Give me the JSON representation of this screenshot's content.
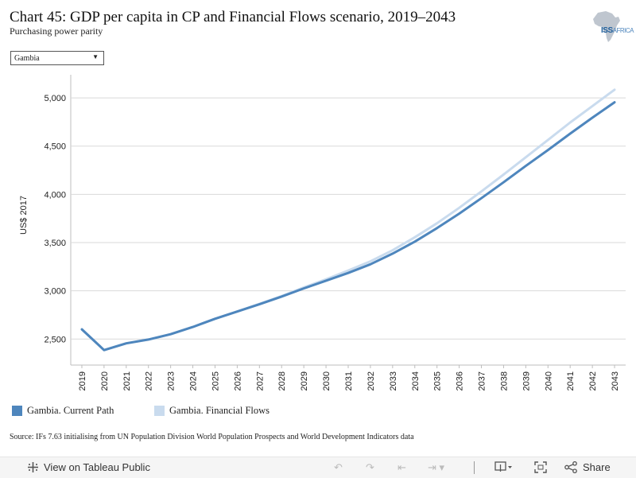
{
  "header": {
    "title": "Chart 45: GDP per capita in CP and Financial Flows scenario, 2019–2043",
    "subtitle": "Purchasing power parity",
    "logo_text": "ISS AFRICA"
  },
  "filter": {
    "selected": "Gambia"
  },
  "colors": {
    "current_path": "#4e86bd",
    "financial_flows": "#c9dbee",
    "grid": "#d9d9d9"
  },
  "chart_data": {
    "type": "line",
    "title": "Chart 45: GDP per capita in CP and Financial Flows scenario, 2019–2043",
    "subtitle": "Purchasing power parity",
    "xlabel": "",
    "ylabel": "US$ 2017",
    "ylim": [
      2230,
      5240
    ],
    "yticks": [
      2500,
      3000,
      3500,
      4000,
      4500,
      5000
    ],
    "ytick_labels": [
      "2,500",
      "3,000",
      "3,500",
      "4,000",
      "4,500",
      "5,000"
    ],
    "x": [
      2019,
      2020,
      2021,
      2022,
      2023,
      2024,
      2025,
      2026,
      2027,
      2028,
      2029,
      2030,
      2031,
      2032,
      2033,
      2034,
      2035,
      2036,
      2037,
      2038,
      2039,
      2040,
      2041,
      2042,
      2043
    ],
    "series": [
      {
        "name": "Gambia. Current Path",
        "color": "#4e86bd",
        "values": [
          2600,
          2385,
          2455,
          2495,
          2550,
          2625,
          2710,
          2785,
          2860,
          2940,
          3025,
          3105,
          3185,
          3275,
          3385,
          3510,
          3650,
          3800,
          3960,
          4125,
          4295,
          4460,
          4630,
          4795,
          4955
        ]
      },
      {
        "name": "Gambia. Financial Flows",
        "color": "#c9dbee",
        "values": [
          2600,
          2385,
          2455,
          2495,
          2550,
          2625,
          2710,
          2785,
          2865,
          2945,
          3035,
          3120,
          3210,
          3305,
          3420,
          3555,
          3700,
          3860,
          4030,
          4205,
          4385,
          4565,
          4745,
          4915,
          5085
        ]
      }
    ],
    "grid": true,
    "legend_position": "bottom-left"
  },
  "legend": {
    "items": [
      {
        "label": "Gambia. Current Path",
        "color": "#4e86bd"
      },
      {
        "label": "Gambia. Financial Flows",
        "color": "#c9dbee"
      }
    ]
  },
  "source": "Source: IFs 7.63 initialising from UN Population Division World Population Prospects and World Development Indicators data",
  "toolbar": {
    "view_label": "View on Tableau Public",
    "share_label": "Share",
    "icons": [
      "tableau-icon",
      "undo-icon",
      "redo-icon",
      "revert-icon",
      "refresh-icon",
      "download-icon",
      "fullscreen-icon",
      "share-icon"
    ]
  }
}
